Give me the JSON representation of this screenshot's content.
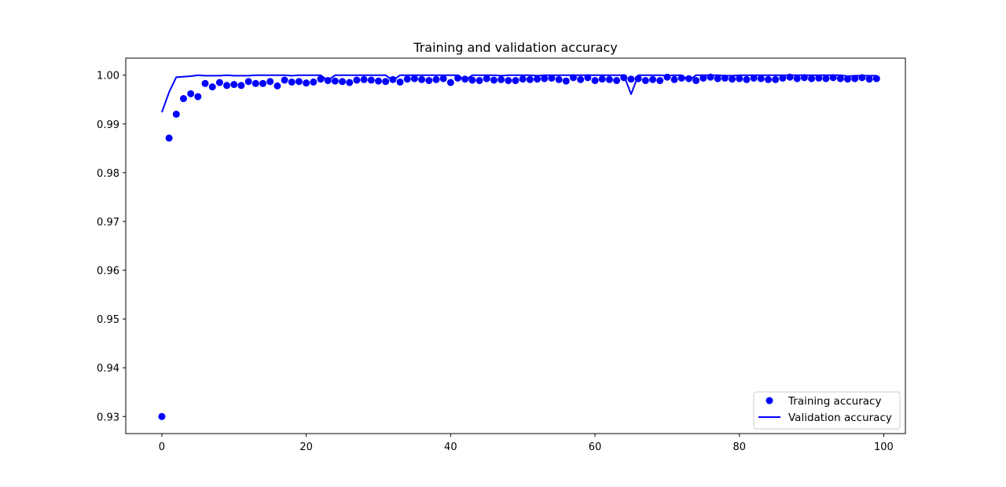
{
  "chart_data": {
    "type": "line",
    "title": "Training and validation accuracy",
    "xlabel": "",
    "ylabel": "",
    "xlim": [
      -5,
      103
    ],
    "ylim": [
      0.9265,
      1.0035
    ],
    "x_ticks": [
      0,
      20,
      40,
      60,
      80,
      100
    ],
    "x_tick_labels": [
      "0",
      "20",
      "40",
      "60",
      "80",
      "100"
    ],
    "y_ticks": [
      0.93,
      0.94,
      0.95,
      0.96,
      0.97,
      0.98,
      0.99,
      1.0
    ],
    "y_tick_labels": [
      "0.93",
      "0.94",
      "0.95",
      "0.96",
      "0.97",
      "0.98",
      "0.99",
      "1.00"
    ],
    "grid": false,
    "legend_position": "lower-right",
    "series": [
      {
        "name": "Training accuracy",
        "style": "markers",
        "color": "#0000ff",
        "x": [
          0,
          1,
          2,
          3,
          4,
          5,
          6,
          7,
          8,
          9,
          10,
          11,
          12,
          13,
          14,
          15,
          16,
          17,
          18,
          19,
          20,
          21,
          22,
          23,
          24,
          25,
          26,
          27,
          28,
          29,
          30,
          31,
          32,
          33,
          34,
          35,
          36,
          37,
          38,
          39,
          40,
          41,
          42,
          43,
          44,
          45,
          46,
          47,
          48,
          49,
          50,
          51,
          52,
          53,
          54,
          55,
          56,
          57,
          58,
          59,
          60,
          61,
          62,
          63,
          64,
          65,
          66,
          67,
          68,
          69,
          70,
          71,
          72,
          73,
          74,
          75,
          76,
          77,
          78,
          79,
          80,
          81,
          82,
          83,
          84,
          85,
          86,
          87,
          88,
          89,
          90,
          91,
          92,
          93,
          94,
          95,
          96,
          97,
          98,
          99
        ],
        "y": [
          0.93,
          0.9871,
          0.992,
          0.9952,
          0.9962,
          0.9956,
          0.9983,
          0.9976,
          0.9985,
          0.9979,
          0.9981,
          0.9979,
          0.9987,
          0.9983,
          0.9983,
          0.9987,
          0.9978,
          0.999,
          0.9986,
          0.9987,
          0.9984,
          0.9986,
          0.9992,
          0.9989,
          0.9988,
          0.9987,
          0.9985,
          0.999,
          0.9991,
          0.999,
          0.9988,
          0.9987,
          0.9991,
          0.9986,
          0.9992,
          0.9993,
          0.9991,
          0.9989,
          0.9991,
          0.9993,
          0.9985,
          0.9994,
          0.9992,
          0.999,
          0.9989,
          0.9993,
          0.999,
          0.9991,
          0.9989,
          0.9989,
          0.9992,
          0.9991,
          0.9992,
          0.9993,
          0.9994,
          0.9991,
          0.9988,
          0.9995,
          0.9991,
          0.9995,
          0.9989,
          0.9992,
          0.9991,
          0.9989,
          0.9995,
          0.9992,
          0.9993,
          0.9989,
          0.9991,
          0.9989,
          0.9996,
          0.9991,
          0.9994,
          0.9993,
          0.9989,
          0.9994,
          0.9996,
          0.9993,
          0.9994,
          0.9992,
          0.9993,
          0.9991,
          0.9994,
          0.9993,
          0.9991,
          0.9991,
          0.9994,
          0.9996,
          0.9993,
          0.9995,
          0.9993,
          0.9994,
          0.9993,
          0.9995,
          0.9993,
          0.9992,
          0.9993,
          0.9995,
          0.9992,
          0.9993
        ]
      },
      {
        "name": "Validation accuracy",
        "style": "line",
        "color": "#0000ff",
        "x": [
          0,
          1,
          2,
          3,
          4,
          5,
          6,
          7,
          8,
          9,
          10,
          11,
          12,
          13,
          14,
          15,
          16,
          17,
          18,
          19,
          20,
          21,
          22,
          23,
          24,
          25,
          26,
          27,
          28,
          29,
          30,
          31,
          32,
          33,
          34,
          35,
          36,
          37,
          38,
          39,
          40,
          41,
          42,
          43,
          44,
          45,
          46,
          47,
          48,
          49,
          50,
          51,
          52,
          53,
          54,
          55,
          56,
          57,
          58,
          59,
          60,
          61,
          62,
          63,
          64,
          65,
          66,
          67,
          68,
          69,
          70,
          71,
          72,
          73,
          74,
          75,
          76,
          77,
          78,
          79,
          80,
          81,
          82,
          83,
          84,
          85,
          86,
          87,
          88,
          89,
          90,
          91,
          92,
          93,
          94,
          95,
          96,
          97,
          98,
          99
        ],
        "y": [
          0.9924,
          0.9965,
          0.9996,
          0.9997,
          0.9998,
          1.0,
          0.9999,
          0.9999,
          0.9999,
          1.0,
          0.9999,
          0.9999,
          0.9999,
          1.0,
          1.0,
          1.0,
          1.0,
          1.0,
          0.9999,
          1.0,
          1.0,
          1.0,
          1.0,
          0.9989,
          1.0,
          1.0,
          1.0,
          1.0,
          1.0,
          1.0,
          1.0,
          1.0,
          0.9989,
          1.0,
          1.0,
          1.0,
          1.0,
          1.0,
          1.0,
          1.0,
          1.0,
          1.0,
          0.9989,
          1.0,
          1.0,
          1.0,
          1.0,
          0.9999,
          1.0,
          1.0,
          1.0,
          1.0,
          0.9999,
          1.0,
          1.0,
          1.0,
          1.0,
          1.0,
          1.0,
          1.0,
          1.0,
          1.0,
          1.0,
          1.0,
          1.0,
          0.9961,
          1.0,
          1.0,
          1.0,
          1.0,
          0.9999,
          1.0,
          1.0,
          0.9989,
          1.0,
          1.0,
          1.0,
          1.0,
          0.9999,
          0.9999,
          1.0,
          1.0,
          1.0,
          1.0,
          1.0,
          1.0,
          1.0,
          1.0,
          1.0,
          1.0,
          1.0,
          1.0,
          1.0,
          1.0,
          1.0,
          0.9998,
          0.9999,
          0.9999,
          0.9999,
          0.9999
        ]
      }
    ]
  }
}
